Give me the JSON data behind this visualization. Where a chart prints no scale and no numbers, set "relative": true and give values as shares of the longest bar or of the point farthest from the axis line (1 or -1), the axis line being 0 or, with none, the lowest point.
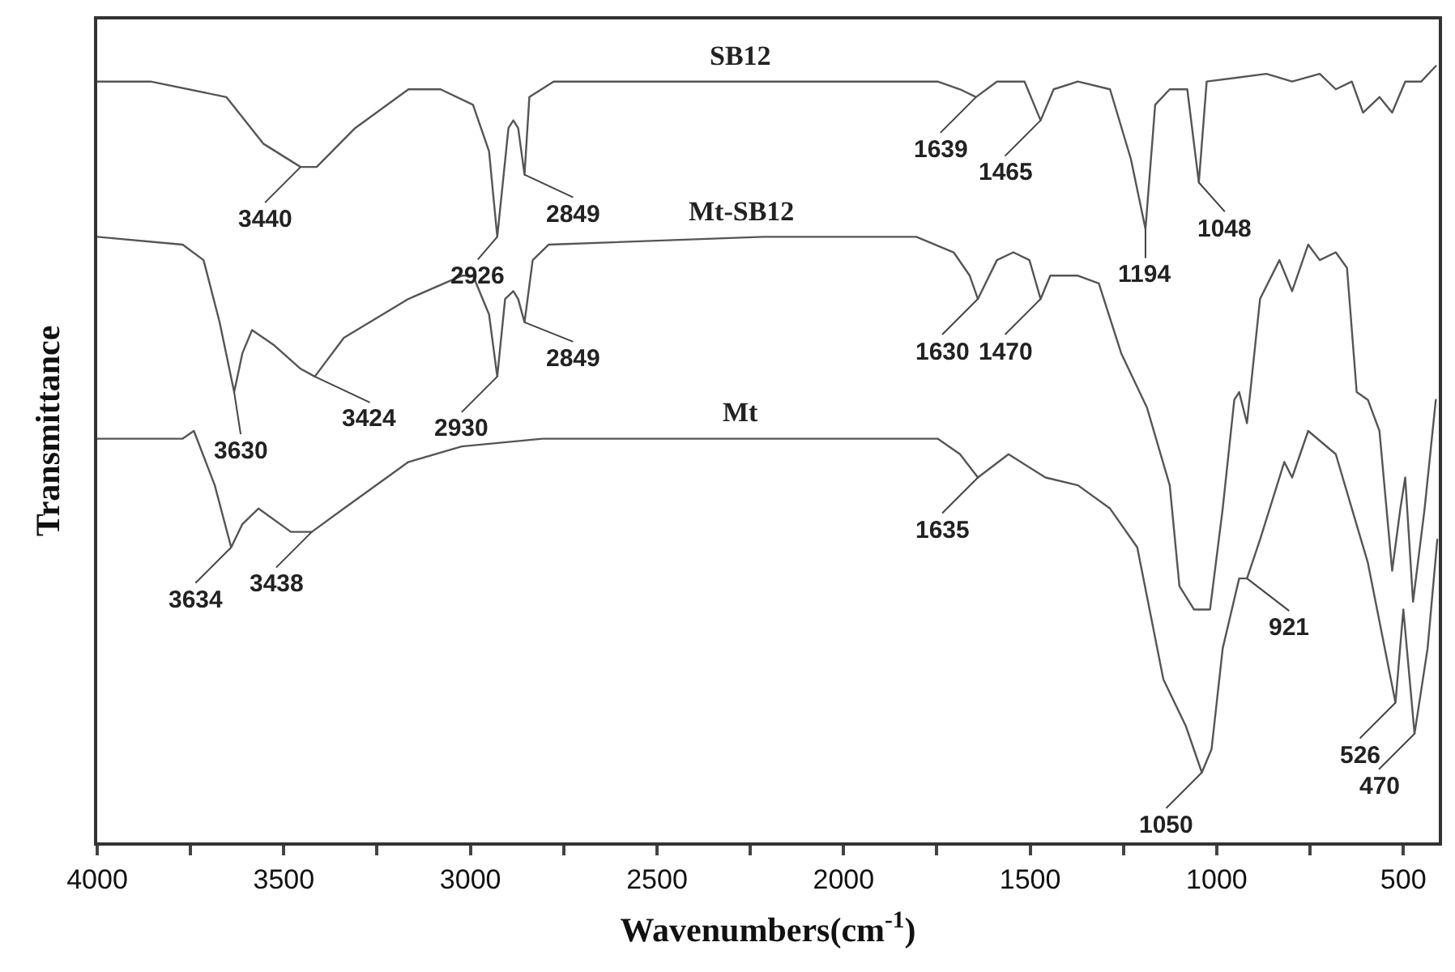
{
  "chart_data": {
    "type": "line",
    "relative": true,
    "xlabel": "Wavenumbers(cm$^{-1}$)",
    "ylabel": "Transmittance",
    "xlim": [
      4000,
      405
    ],
    "xticks": [
      4000,
      {
        "value": 3750,
        "label": null
      },
      3500,
      {
        "value": 3250,
        "label": null
      },
      3000,
      {
        "value": 2750,
        "label": null
      },
      2500,
      {
        "value": 2250,
        "label": null
      },
      2000,
      {
        "value": 1750,
        "label": null
      },
      1500,
      {
        "value": 1250,
        "label": null
      },
      1000,
      {
        "value": 750,
        "label": null
      },
      500
    ],
    "legend": false,
    "marker": "none",
    "line_style": "solid",
    "series": [
      {
        "name": "SB12",
        "color": "#555555",
        "x": [
          4000,
          3857,
          3654,
          3555,
          3455,
          3412,
          3309,
          3166,
          3080,
          2993,
          2950,
          2928,
          2898,
          2885,
          2872,
          2855,
          2842,
          2777,
          2008,
          1748,
          1688,
          1645,
          1589,
          1515,
          1472,
          1437,
          1372,
          1286,
          1230,
          1191,
          1165,
          1126,
          1079,
          1048,
          1027,
          867,
          798,
          724,
          681,
          638,
          608,
          564,
          530,
          495,
          452,
          413
        ],
        "values": [
          0.98,
          0.98,
          0.96,
          0.9,
          0.87,
          0.87,
          0.92,
          0.97,
          0.97,
          0.95,
          0.89,
          0.78,
          0.92,
          0.93,
          0.92,
          0.86,
          0.96,
          0.98,
          0.98,
          0.98,
          0.97,
          0.96,
          0.98,
          0.98,
          0.93,
          0.97,
          0.98,
          0.97,
          0.88,
          0.79,
          0.95,
          0.97,
          0.97,
          0.85,
          0.98,
          0.99,
          0.98,
          0.99,
          0.97,
          0.98,
          0.94,
          0.96,
          0.94,
          0.98,
          0.98,
          1.0
        ]
      },
      {
        "name": "Mt-SB12",
        "color": "#555555",
        "x": [
          4000,
          3771,
          3715,
          3672,
          3633,
          3611,
          3585,
          3525,
          3455,
          3417,
          3339,
          3166,
          3023,
          2993,
          2950,
          2928,
          2907,
          2885,
          2872,
          2855,
          2833,
          2790,
          2215,
          1805,
          1705,
          1662,
          1640,
          1589,
          1545,
          1502,
          1472,
          1446,
          1372,
          1316,
          1256,
          1187,
          1126,
          1100,
          1061,
          1018,
          984,
          953,
          940,
          919,
          884,
          832,
          798,
          755,
          724,
          681,
          651,
          625,
          595,
          564,
          530,
          508,
          495,
          474,
          443,
          413
        ],
        "values": [
          0.78,
          0.77,
          0.75,
          0.67,
          0.58,
          0.63,
          0.66,
          0.64,
          0.61,
          0.6,
          0.65,
          0.7,
          0.73,
          0.73,
          0.68,
          0.6,
          0.7,
          0.71,
          0.7,
          0.67,
          0.75,
          0.77,
          0.78,
          0.78,
          0.76,
          0.73,
          0.7,
          0.75,
          0.76,
          0.75,
          0.7,
          0.73,
          0.73,
          0.72,
          0.63,
          0.56,
          0.46,
          0.33,
          0.3,
          0.3,
          0.43,
          0.57,
          0.58,
          0.54,
          0.7,
          0.75,
          0.71,
          0.77,
          0.75,
          0.76,
          0.74,
          0.58,
          0.57,
          0.53,
          0.35,
          0.43,
          0.47,
          0.31,
          0.43,
          0.57
        ]
      },
      {
        "name": "Mt",
        "color": "#555555",
        "x": [
          4000,
          3844,
          3771,
          3741,
          3685,
          3641,
          3611,
          3568,
          3481,
          3425,
          3339,
          3166,
          3023,
          2807,
          2228,
          1748,
          1688,
          1640,
          1558,
          1459,
          1372,
          1286,
          1213,
          1143,
          1083,
          1040,
          1014,
          984,
          940,
          919,
          884,
          819,
          798,
          755,
          681,
          638,
          595,
          521,
          500,
          470,
          435,
          409
        ],
        "values": [
          0.52,
          0.52,
          0.52,
          0.53,
          0.46,
          0.38,
          0.41,
          0.43,
          0.4,
          0.4,
          0.43,
          0.49,
          0.51,
          0.52,
          0.52,
          0.52,
          0.5,
          0.47,
          0.5,
          0.47,
          0.46,
          0.43,
          0.38,
          0.21,
          0.15,
          0.09,
          0.12,
          0.25,
          0.34,
          0.34,
          0.39,
          0.49,
          0.47,
          0.53,
          0.5,
          0.43,
          0.36,
          0.18,
          0.3,
          0.14,
          0.25,
          0.39
        ]
      }
    ],
    "annotations": [
      {
        "text": "3440",
        "x": 3455,
        "y": 0.87
      },
      {
        "text": "2926",
        "x": 2928,
        "y": 0.78
      },
      {
        "text": "2849",
        "x": 2855,
        "y": 0.86
      },
      {
        "text": "1639",
        "x": 1645,
        "y": 0.96
      },
      {
        "text": "1465",
        "x": 1472,
        "y": 0.93
      },
      {
        "text": "1194",
        "x": 1191,
        "y": 0.79
      },
      {
        "text": "1048",
        "x": 1048,
        "y": 0.85
      },
      {
        "text": "3630",
        "x": 3633,
        "y": 0.58
      },
      {
        "text": "3424",
        "x": 3417,
        "y": 0.6
      },
      {
        "text": "2930",
        "x": 2928,
        "y": 0.6
      },
      {
        "text": "2849",
        "x": 2855,
        "y": 0.67
      },
      {
        "text": "1630",
        "x": 1640,
        "y": 0.7
      },
      {
        "text": "1470",
        "x": 1472,
        "y": 0.7
      },
      {
        "text": "3634",
        "x": 3641,
        "y": 0.38
      },
      {
        "text": "3438",
        "x": 3425,
        "y": 0.4
      },
      {
        "text": "1635",
        "x": 1640,
        "y": 0.47
      },
      {
        "text": "1050",
        "x": 1040,
        "y": 0.09
      },
      {
        "text": "921",
        "x": 919,
        "y": 0.34
      },
      {
        "text": "526",
        "x": 521,
        "y": 0.18
      },
      {
        "text": "470",
        "x": 470,
        "y": 0.14
      }
    ]
  }
}
